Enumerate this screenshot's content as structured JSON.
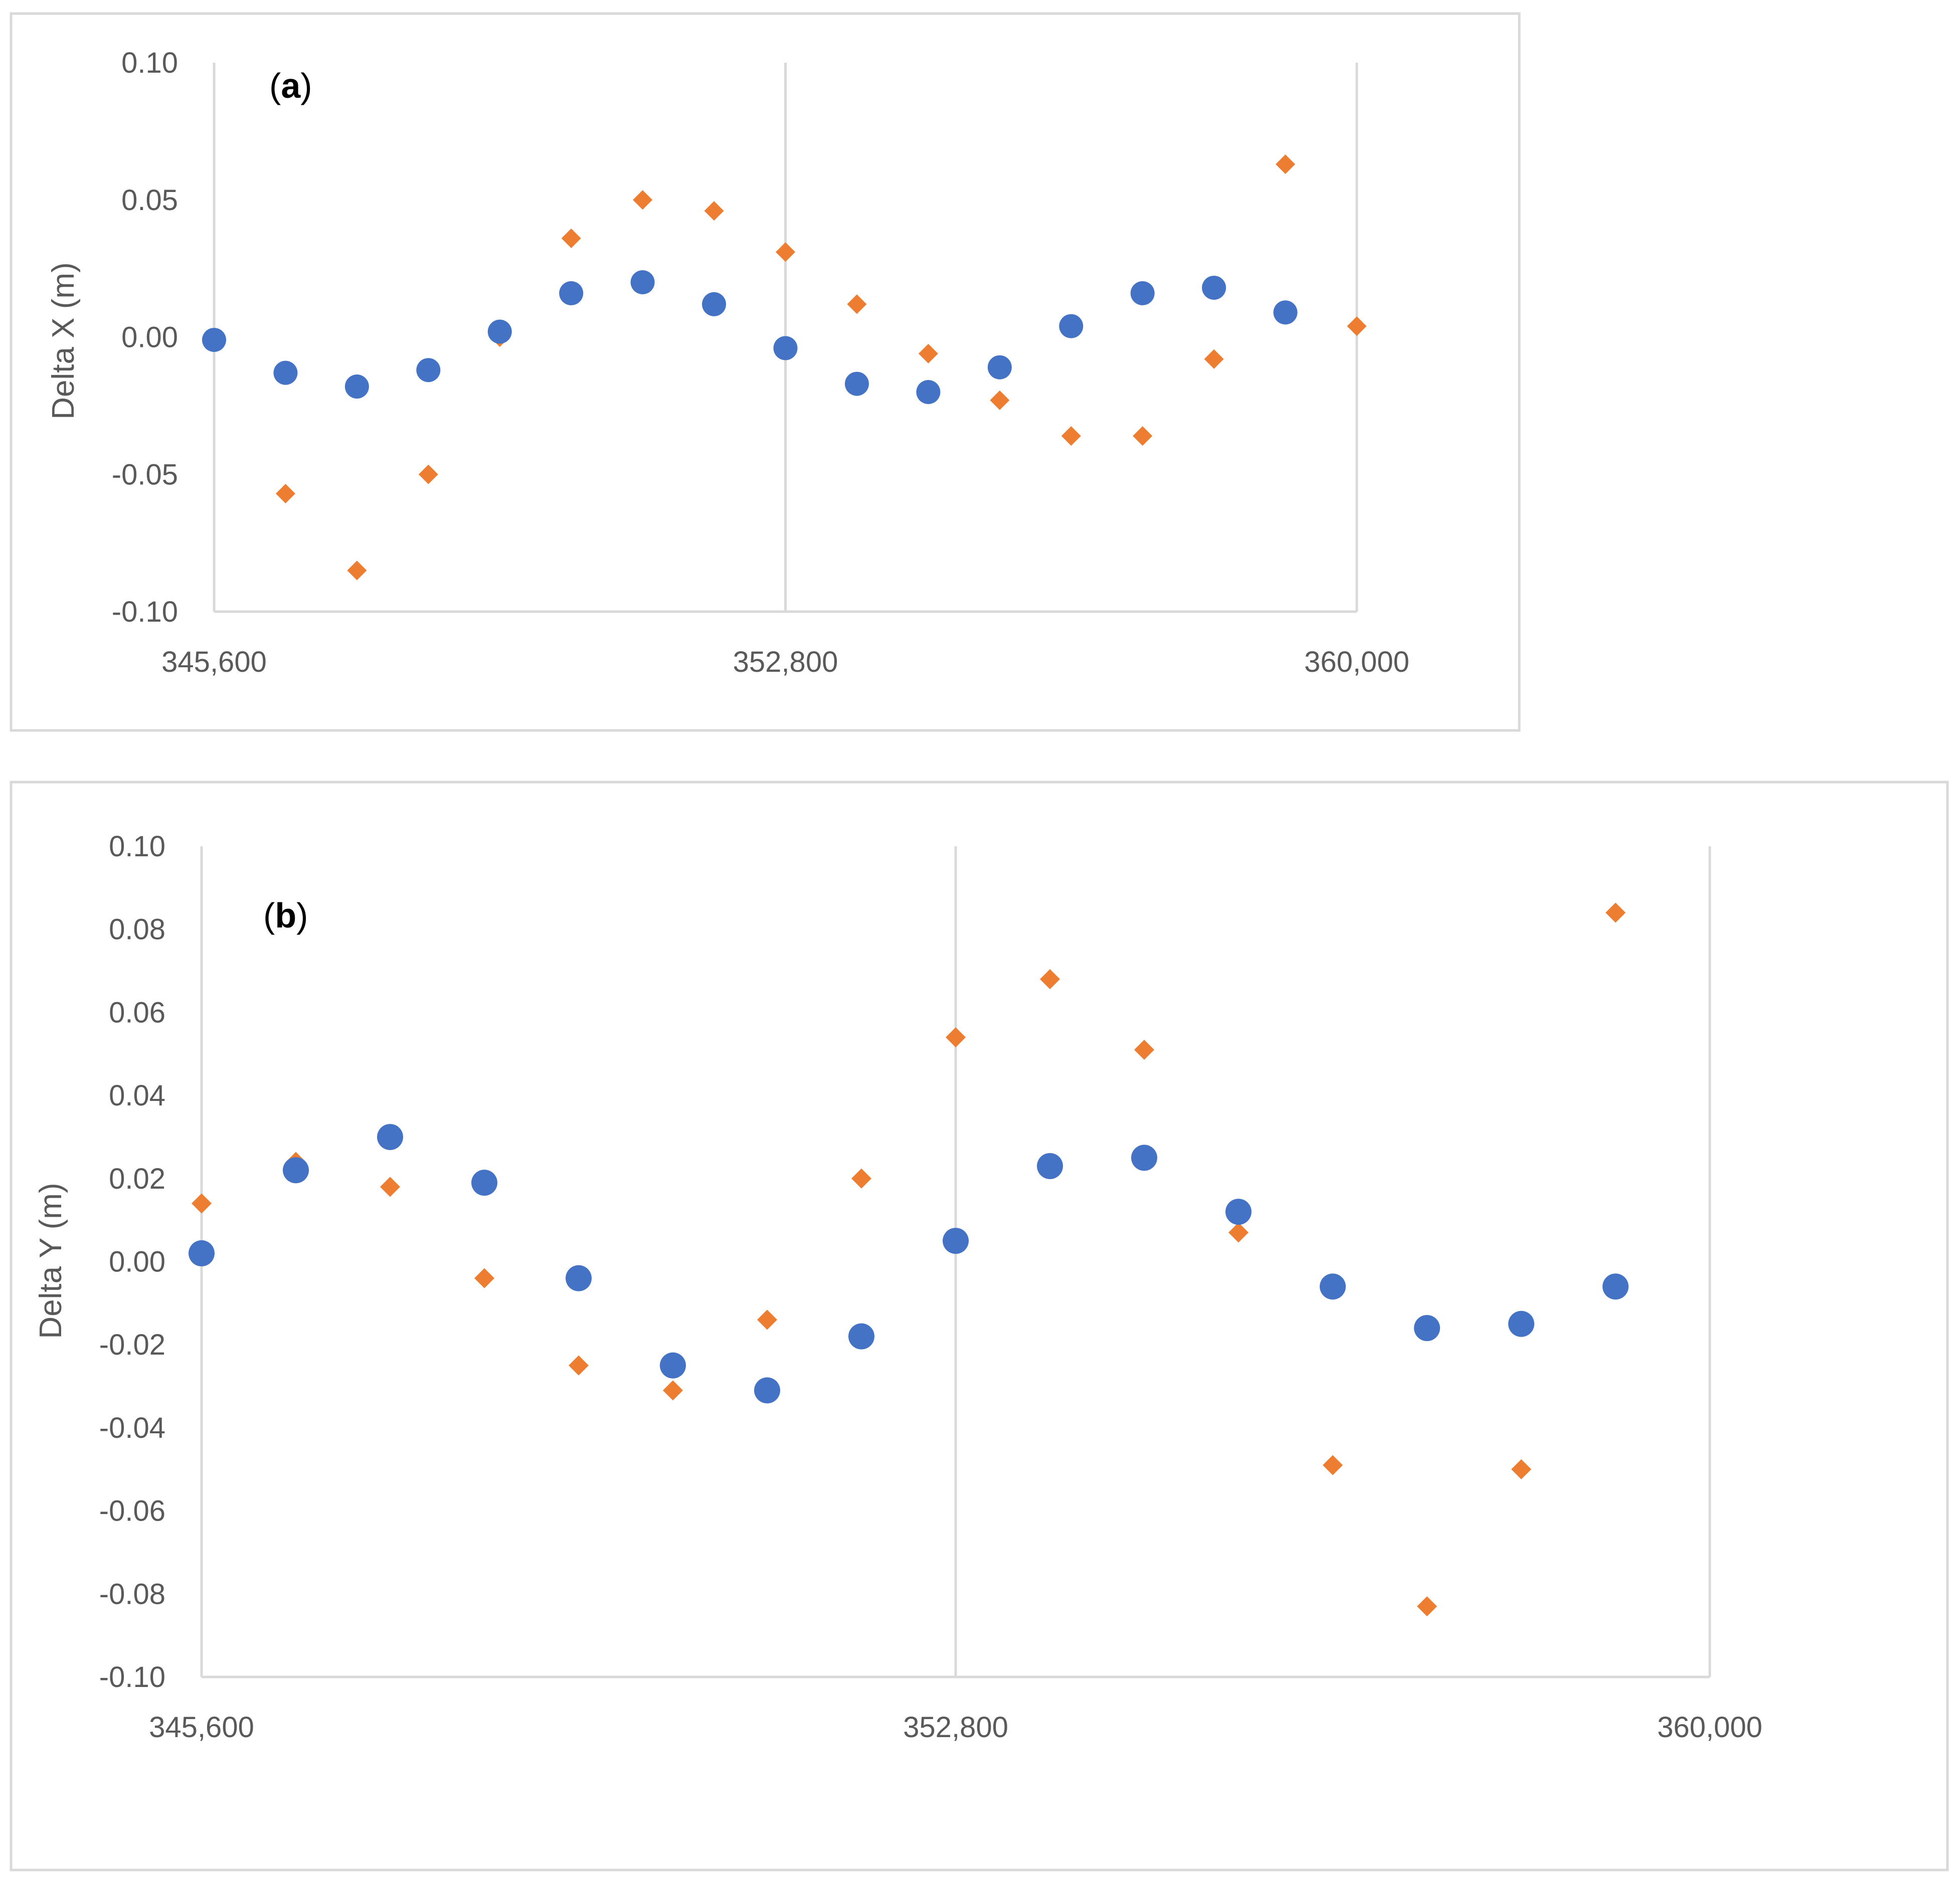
{
  "colors": {
    "series1": "#4472c4",
    "series2": "#ed7d31",
    "gridline": "#d9d9d9",
    "text": "#595959"
  },
  "chart_data": [
    {
      "type": "scatter",
      "panel_label": {
        "open": "(",
        "letter": "a",
        "close": ")"
      },
      "xlabel": "",
      "ylabel": "Delta X (m)",
      "xlim": [
        345600,
        360000
      ],
      "ylim": [
        -0.1,
        0.1
      ],
      "x_ticks": [
        "345,600",
        "352,800",
        "360,000"
      ],
      "x_tick_values": [
        345600,
        352800,
        360000
      ],
      "y_ticks": [
        "0.10",
        "0.05",
        "0.00",
        "-0.05",
        "-0.10"
      ],
      "y_tick_values": [
        0.1,
        0.05,
        0.0,
        -0.05,
        -0.1
      ],
      "series": [
        {
          "name": "series-circle",
          "marker": "circle",
          "x": [
            345600,
            346500,
            347400,
            348300,
            349200,
            350100,
            351000,
            351900,
            352800,
            353700,
            354600,
            355500,
            356400,
            357300,
            358200,
            359100
          ],
          "y": [
            -0.001,
            -0.013,
            -0.018,
            -0.012,
            0.002,
            0.016,
            0.02,
            0.012,
            -0.004,
            -0.017,
            -0.02,
            -0.011,
            0.004,
            0.016,
            0.018,
            0.009
          ]
        },
        {
          "name": "series-diamond",
          "marker": "diamond",
          "x": [
            346500,
            347400,
            348300,
            349200,
            350100,
            351000,
            351900,
            352800,
            353700,
            354600,
            355500,
            356400,
            357300,
            358200,
            359100,
            360000
          ],
          "y": [
            -0.057,
            -0.085,
            -0.05,
            0.0,
            0.036,
            0.05,
            0.046,
            0.031,
            0.012,
            -0.006,
            -0.023,
            -0.036,
            -0.036,
            -0.008,
            0.063,
            0.004
          ]
        }
      ]
    },
    {
      "type": "scatter",
      "panel_label": {
        "open": "(",
        "letter": "b",
        "close": ")"
      },
      "xlabel": "",
      "ylabel": "Delta Y (m)",
      "xlim": [
        345600,
        360000
      ],
      "ylim": [
        -0.1,
        0.1
      ],
      "x_ticks": [
        "345,600",
        "352,800",
        "360,000"
      ],
      "x_tick_values": [
        345600,
        352800,
        360000
      ],
      "y_ticks": [
        "0.10",
        "0.08",
        "0.06",
        "0.04",
        "0.02",
        "0.00",
        "-0.02",
        "-0.04",
        "-0.06",
        "-0.08",
        "-0.10"
      ],
      "y_tick_values": [
        0.1,
        0.08,
        0.06,
        0.04,
        0.02,
        0.0,
        -0.02,
        -0.04,
        -0.06,
        -0.08,
        -0.1
      ],
      "series": [
        {
          "name": "series-circle",
          "marker": "circle",
          "x": [
            345600,
            346500,
            347400,
            348300,
            349200,
            350100,
            351000,
            351900,
            352800,
            353700,
            354600,
            355500,
            356400,
            357300,
            358200,
            359100
          ],
          "y": [
            0.002,
            0.022,
            0.03,
            0.019,
            -0.004,
            -0.025,
            -0.031,
            -0.018,
            0.005,
            0.023,
            0.025,
            0.012,
            -0.006,
            -0.016,
            -0.015,
            -0.006
          ]
        },
        {
          "name": "series-diamond",
          "marker": "diamond",
          "x": [
            345600,
            346500,
            347400,
            348300,
            349200,
            350100,
            351000,
            351900,
            352800,
            353700,
            354600,
            355500,
            356400,
            357300,
            358200,
            359100
          ],
          "y": [
            0.014,
            0.024,
            0.018,
            -0.004,
            -0.025,
            -0.031,
            -0.014,
            0.02,
            0.054,
            0.068,
            0.051,
            0.007,
            -0.049,
            -0.083,
            -0.05,
            0.084
          ]
        }
      ]
    }
  ]
}
